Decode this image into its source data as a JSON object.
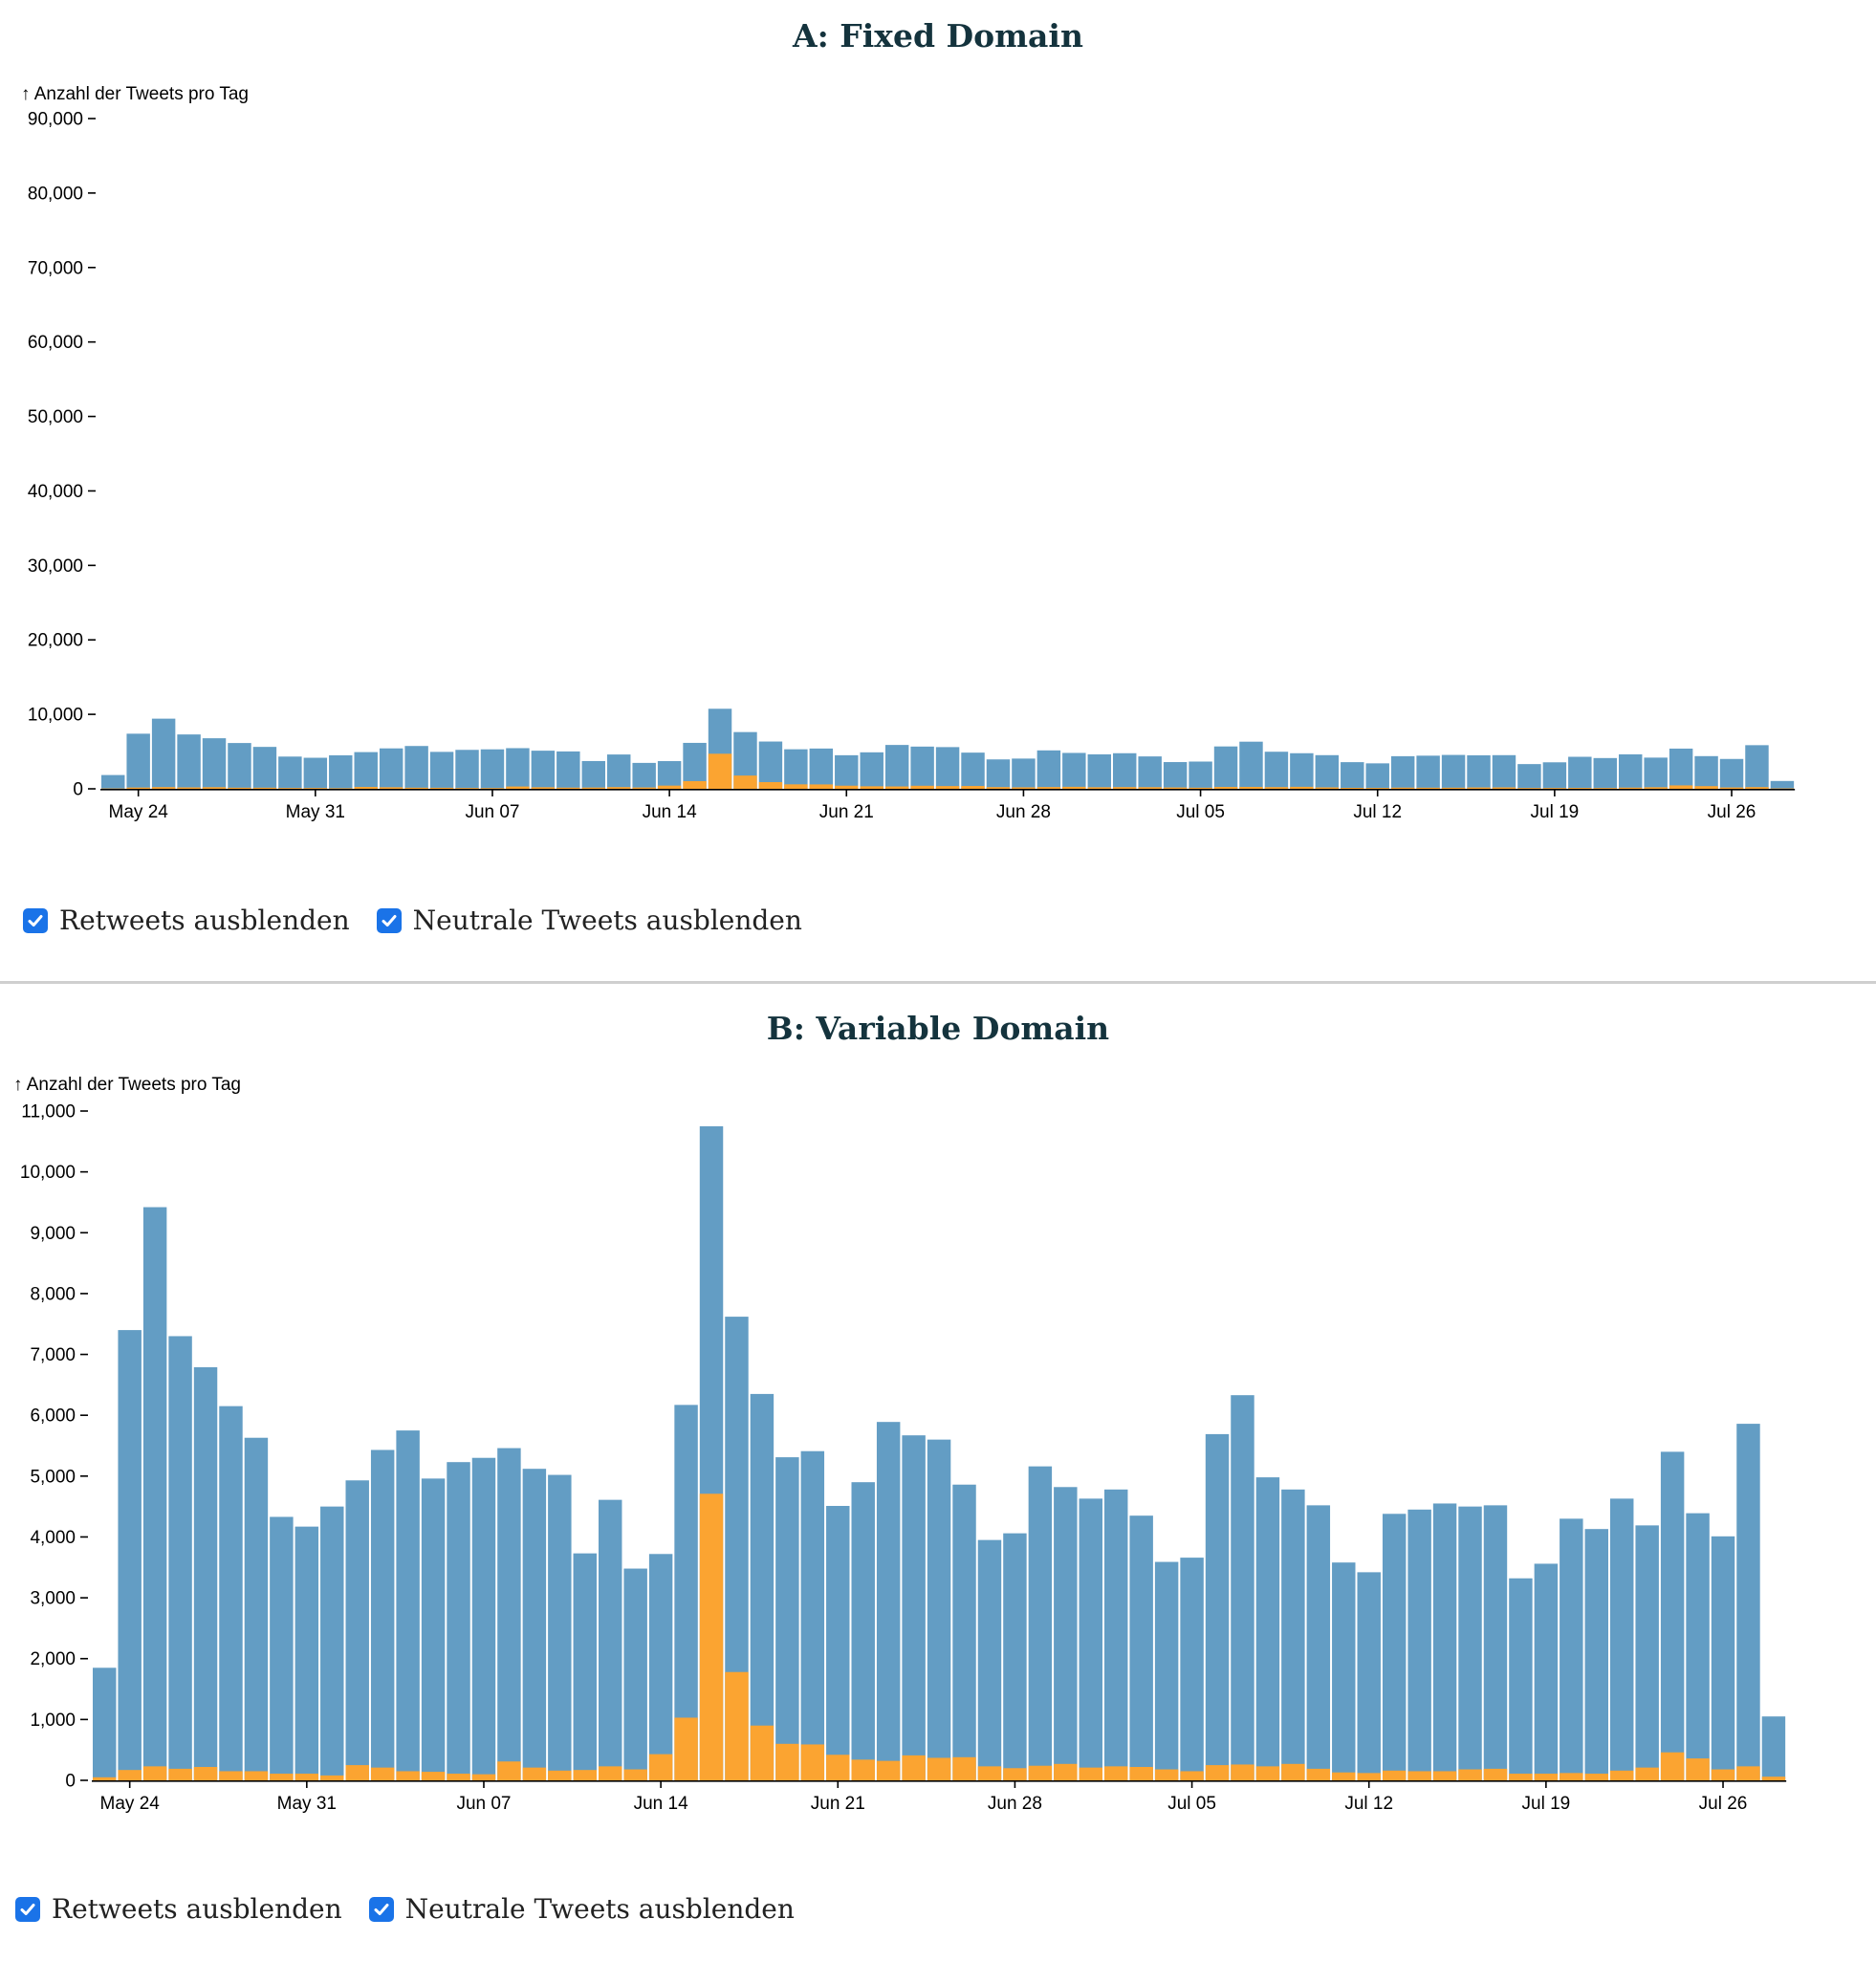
{
  "colors": {
    "total": "#639dc4",
    "subset": "#fba431",
    "title": "#14333d",
    "checkbox": "#1a73e8"
  },
  "controls": {
    "hide_retweets": "Retweets ausblenden",
    "hide_neutral": "Neutrale Tweets ausblenden",
    "hide_retweets_checked": true,
    "hide_neutral_checked": true
  },
  "chart_data": [
    {
      "type": "bar",
      "stacked": "overlay",
      "title": "A: Fixed Domain",
      "ylabel": "↑ Anzahl der Tweets pro Tag",
      "ylim": [
        0,
        90000
      ],
      "yticks": [
        0,
        10000,
        20000,
        30000,
        40000,
        50000,
        60000,
        70000,
        80000,
        90000
      ],
      "ytick_labels": [
        "0",
        "10,000",
        "20,000",
        "30,000",
        "40,000",
        "50,000",
        "60,000",
        "70,000",
        "80,000",
        "90,000"
      ],
      "xtick_labels": [
        "May 24",
        "May 31",
        "Jun 07",
        "Jun 14",
        "Jun 21",
        "Jun 28",
        "Jul 05",
        "Jul 12",
        "Jul 19",
        "Jul 26"
      ],
      "x_start": "2020-05-23",
      "grid": false,
      "series": [
        {
          "values": [
            1850,
            7400,
            9420,
            7300,
            6790,
            6150,
            5630,
            4330,
            4170,
            4500,
            4930,
            5430,
            5750,
            4960,
            5230,
            5300,
            5460,
            5120,
            5020,
            3730,
            4610,
            3480,
            3720,
            6170,
            10750,
            7620,
            6350,
            5310,
            5410,
            4510,
            4900,
            5890,
            5670,
            5600,
            4860,
            3950,
            4060,
            5160,
            4820,
            4630,
            4780,
            4350,
            3590,
            3660,
            5690,
            6330,
            4980,
            4780,
            4520,
            3580,
            3420,
            4380,
            4450,
            4550,
            4500,
            4520,
            3320,
            3560,
            4300,
            4130,
            4630,
            4190,
            5400,
            4390,
            4010,
            5860,
            1050
          ]
        },
        {
          "values": [
            50,
            170,
            230,
            190,
            220,
            150,
            150,
            110,
            110,
            80,
            250,
            210,
            150,
            140,
            110,
            100,
            310,
            210,
            160,
            170,
            230,
            180,
            430,
            1030,
            4710,
            1780,
            900,
            600,
            590,
            420,
            340,
            320,
            410,
            370,
            380,
            230,
            200,
            240,
            270,
            210,
            230,
            220,
            180,
            150,
            250,
            260,
            230,
            270,
            190,
            130,
            120,
            160,
            150,
            150,
            180,
            190,
            110,
            110,
            120,
            110,
            160,
            210,
            460,
            360,
            180,
            230,
            60
          ]
        }
      ]
    },
    {
      "type": "bar",
      "stacked": "overlay",
      "title": "B: Variable Domain",
      "ylabel": "↑ Anzahl der Tweets pro Tag",
      "ylim": [
        0,
        11000
      ],
      "yticks": [
        0,
        1000,
        2000,
        3000,
        4000,
        5000,
        6000,
        7000,
        8000,
        9000,
        10000,
        11000
      ],
      "ytick_labels": [
        "0",
        "1,000",
        "2,000",
        "3,000",
        "4,000",
        "5,000",
        "6,000",
        "7,000",
        "8,000",
        "9,000",
        "10,000",
        "11,000"
      ],
      "xtick_labels": [
        "May 24",
        "May 31",
        "Jun 07",
        "Jun 14",
        "Jun 21",
        "Jun 28",
        "Jul 05",
        "Jul 12",
        "Jul 19",
        "Jul 26"
      ],
      "x_start": "2020-05-23",
      "grid": false,
      "series": [
        {
          "values": [
            1850,
            7400,
            9420,
            7300,
            6790,
            6150,
            5630,
            4330,
            4170,
            4500,
            4930,
            5430,
            5750,
            4960,
            5230,
            5300,
            5460,
            5120,
            5020,
            3730,
            4610,
            3480,
            3720,
            6170,
            10750,
            7620,
            6350,
            5310,
            5410,
            4510,
            4900,
            5890,
            5670,
            5600,
            4860,
            3950,
            4060,
            5160,
            4820,
            4630,
            4780,
            4350,
            3590,
            3660,
            5690,
            6330,
            4980,
            4780,
            4520,
            3580,
            3420,
            4380,
            4450,
            4550,
            4500,
            4520,
            3320,
            3560,
            4300,
            4130,
            4630,
            4190,
            5400,
            4390,
            4010,
            5860,
            1050
          ]
        },
        {
          "values": [
            50,
            170,
            230,
            190,
            220,
            150,
            150,
            110,
            110,
            80,
            250,
            210,
            150,
            140,
            110,
            100,
            310,
            210,
            160,
            170,
            230,
            180,
            430,
            1030,
            4710,
            1780,
            900,
            600,
            590,
            420,
            340,
            320,
            410,
            370,
            380,
            230,
            200,
            240,
            270,
            210,
            230,
            220,
            180,
            150,
            250,
            260,
            230,
            270,
            190,
            130,
            120,
            160,
            150,
            150,
            180,
            190,
            110,
            110,
            120,
            110,
            160,
            210,
            460,
            360,
            180,
            230,
            60
          ]
        }
      ]
    }
  ]
}
